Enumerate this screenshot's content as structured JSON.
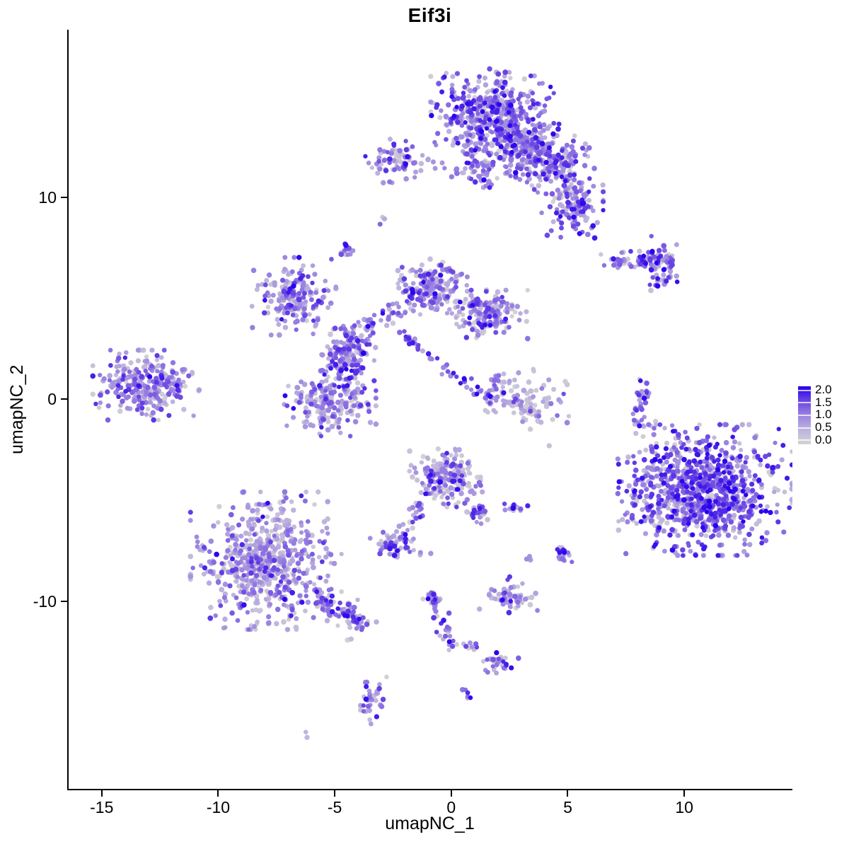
{
  "legend": {
    "labels": [
      "2.0",
      "1.5",
      "1.0",
      "0.5",
      "0.0"
    ],
    "values": [
      2.0,
      1.5,
      1.0,
      0.5,
      0.0
    ]
  },
  "chart_data": {
    "type": "scatter",
    "title": "Eif3i",
    "xlabel": "umapNC_1",
    "ylabel": "umapNC_2",
    "xlim": [
      -16.42,
      14.64
    ],
    "ylim": [
      -19.3,
      18.3
    ],
    "xticks": [
      -15,
      -10,
      -5,
      0,
      5,
      10
    ],
    "yticks": [
      10,
      0,
      -10
    ],
    "grid": false,
    "legend_position": "right",
    "point_color_meaning": "Eif3i expression level",
    "color_scale": {
      "min": 0,
      "max": 2,
      "stops": [
        [
          0.0,
          "#D3D3D3"
        ],
        [
          0.5,
          "#BEB3DE"
        ],
        [
          1.0,
          "#9A83E1"
        ],
        [
          1.5,
          "#6A45E3"
        ],
        [
          2.0,
          "#2800F0"
        ]
      ]
    },
    "clusters": [
      {
        "type": "gauss",
        "x": 1.76,
        "y": 14.2,
        "sx": 1.1,
        "sy": 0.9,
        "n": 420,
        "w": [
          0.14,
          0.22,
          0.3,
          0.22,
          0.12
        ]
      },
      {
        "type": "gauss",
        "x": 4.0,
        "y": 11.9,
        "sx": 0.8,
        "sy": 0.72,
        "n": 230,
        "w": [
          0.15,
          0.22,
          0.3,
          0.21,
          0.12
        ]
      },
      {
        "type": "gauss",
        "x": 5.2,
        "y": 9.7,
        "sx": 0.55,
        "sy": 0.72,
        "n": 140,
        "w": [
          0.18,
          0.24,
          0.28,
          0.2,
          0.1
        ]
      },
      {
        "type": "gauss",
        "x": 2.8,
        "y": 12.6,
        "sx": 0.65,
        "sy": 0.6,
        "n": 130,
        "w": [
          0.15,
          0.25,
          0.3,
          0.2,
          0.1
        ]
      },
      {
        "type": "line",
        "x1": 0.8,
        "y1": 12.9,
        "x2": 1.5,
        "y2": 10.7,
        "j": 0.3,
        "n": 80,
        "w": [
          0.15,
          0.25,
          0.3,
          0.2,
          0.1
        ]
      },
      {
        "type": "line",
        "x1": -0.97,
        "y1": 11.4,
        "x2": 0.7,
        "y2": 11.3,
        "j": 0.15,
        "n": 12,
        "w": [
          0.3,
          0.3,
          0.25,
          0.1,
          0.05
        ]
      },
      {
        "type": "gauss",
        "x": -2.2,
        "y": 11.8,
        "sx": 0.62,
        "sy": 0.45,
        "n": 78,
        "w": [
          0.25,
          0.25,
          0.27,
          0.16,
          0.07
        ]
      },
      {
        "type": "gauss",
        "x": -4.5,
        "y": 7.35,
        "sx": 0.14,
        "sy": 0.18,
        "n": 14,
        "w": [
          0.05,
          0.2,
          0.35,
          0.27,
          0.13
        ]
      },
      {
        "type": "gauss",
        "x": -2.95,
        "y": 8.8,
        "sx": 0.1,
        "sy": 0.1,
        "n": 3,
        "w": [
          0.2,
          0.3,
          0.3,
          0.15,
          0.05
        ]
      },
      {
        "type": "line",
        "x1": 6.7,
        "y1": 6.95,
        "x2": 9.2,
        "y2": 6.75,
        "j": 0.25,
        "n": 70,
        "w": [
          0.2,
          0.22,
          0.26,
          0.2,
          0.12
        ]
      },
      {
        "type": "gauss",
        "x": 9.05,
        "y": 6.9,
        "sx": 0.42,
        "sy": 0.5,
        "n": 45,
        "w": [
          0.15,
          0.2,
          0.28,
          0.24,
          0.13
        ]
      },
      {
        "type": "line",
        "x1": 8.55,
        "y1": 5.55,
        "x2": 9.35,
        "y2": 6.1,
        "j": 0.1,
        "n": 12,
        "w": [
          0.1,
          0.25,
          0.3,
          0.25,
          0.1
        ]
      },
      {
        "type": "gauss",
        "x": -6.75,
        "y": 5.1,
        "sx": 0.75,
        "sy": 0.8,
        "n": 195,
        "w": [
          0.18,
          0.26,
          0.3,
          0.18,
          0.08
        ]
      },
      {
        "type": "gauss",
        "x": -0.8,
        "y": 5.5,
        "sx": 0.62,
        "sy": 0.6,
        "n": 160,
        "w": [
          0.2,
          0.28,
          0.3,
          0.15,
          0.07
        ]
      },
      {
        "type": "gauss",
        "x": 1.55,
        "y": 4.2,
        "sx": 0.72,
        "sy": 0.5,
        "n": 170,
        "w": [
          0.28,
          0.25,
          0.25,
          0.15,
          0.07
        ]
      },
      {
        "type": "gauss",
        "x": -4.45,
        "y": 2.3,
        "sx": 0.5,
        "sy": 0.68,
        "n": 155,
        "w": [
          0.15,
          0.25,
          0.3,
          0.2,
          0.1
        ]
      },
      {
        "type": "line",
        "x1": -4.2,
        "y1": 3.1,
        "x2": -1.6,
        "y2": 5.0,
        "j": 0.3,
        "n": 55,
        "w": [
          0.2,
          0.27,
          0.3,
          0.15,
          0.08
        ]
      },
      {
        "type": "gauss",
        "x": -5.2,
        "y": -0.1,
        "sx": 0.82,
        "sy": 0.72,
        "n": 205,
        "w": [
          0.25,
          0.3,
          0.26,
          0.13,
          0.06
        ]
      },
      {
        "type": "line",
        "x1": -2.2,
        "y1": 3.3,
        "x2": 1.85,
        "y2": -0.2,
        "j": 0.12,
        "n": 52,
        "w": [
          0.08,
          0.18,
          0.3,
          0.27,
          0.17
        ]
      },
      {
        "type": "gauss",
        "x": 3.3,
        "y": 0.0,
        "sx": 0.8,
        "sy": 0.62,
        "n": 105,
        "w": [
          0.6,
          0.22,
          0.12,
          0.04,
          0.02
        ]
      },
      {
        "type": "line",
        "x1": 2.0,
        "y1": 1.2,
        "x2": 1.6,
        "y2": 0.2,
        "j": 0.15,
        "n": 18,
        "w": [
          0.2,
          0.3,
          0.3,
          0.15,
          0.05
        ]
      },
      {
        "type": "line",
        "x1": 8.35,
        "y1": 1.1,
        "x2": 7.95,
        "y2": -1.25,
        "j": 0.13,
        "n": 34,
        "w": [
          0.1,
          0.2,
          0.3,
          0.25,
          0.15
        ]
      },
      {
        "type": "gauss",
        "x": 10.9,
        "y": -4.5,
        "sx": 1.55,
        "sy": 1.35,
        "n": 860,
        "w": [
          0.12,
          0.17,
          0.27,
          0.27,
          0.17
        ]
      },
      {
        "type": "gauss",
        "x": 8.35,
        "y": -4.1,
        "sx": 0.5,
        "sy": 1.25,
        "n": 65,
        "w": [
          0.3,
          0.25,
          0.25,
          0.13,
          0.07
        ]
      },
      {
        "type": "gauss",
        "x": -0.3,
        "y": -3.9,
        "sx": 0.68,
        "sy": 0.6,
        "n": 195,
        "w": [
          0.3,
          0.25,
          0.25,
          0.13,
          0.07
        ]
      },
      {
        "type": "line",
        "x1": 0.7,
        "y1": -5.1,
        "x2": 1.35,
        "y2": -6.2,
        "j": 0.18,
        "n": 25,
        "w": [
          0.12,
          0.25,
          0.3,
          0.22,
          0.11
        ]
      },
      {
        "type": "line",
        "x1": -1.3,
        "y1": -5.3,
        "x2": -2.3,
        "y2": -6.9,
        "j": 0.16,
        "n": 22,
        "w": [
          0.25,
          0.3,
          0.25,
          0.13,
          0.07
        ]
      },
      {
        "type": "gauss",
        "x": -2.4,
        "y": -7.25,
        "sx": 0.45,
        "sy": 0.32,
        "n": 58,
        "w": [
          0.28,
          0.27,
          0.25,
          0.13,
          0.07
        ]
      },
      {
        "type": "gauss",
        "x": 2.8,
        "y": -5.4,
        "sx": 0.25,
        "sy": 0.12,
        "n": 12,
        "w": [
          0.08,
          0.2,
          0.32,
          0.25,
          0.15
        ]
      },
      {
        "type": "gauss",
        "x": 4.8,
        "y": -7.7,
        "sx": 0.2,
        "sy": 0.25,
        "n": 18,
        "w": [
          0.15,
          0.25,
          0.3,
          0.2,
          0.1
        ]
      },
      {
        "type": "gauss",
        "x": 3.4,
        "y": -7.95,
        "sx": 0.12,
        "sy": 0.1,
        "n": 4,
        "w": [
          0.3,
          0.3,
          0.25,
          0.1,
          0.05
        ]
      },
      {
        "type": "gauss",
        "x": -7.95,
        "y": -8.0,
        "sx": 1.35,
        "sy": 1.42,
        "n": 640,
        "w": [
          0.28,
          0.3,
          0.26,
          0.12,
          0.04
        ]
      },
      {
        "type": "line",
        "x1": -6.0,
        "y1": -9.9,
        "x2": -3.7,
        "y2": -11.05,
        "j": 0.32,
        "n": 95,
        "w": [
          0.2,
          0.26,
          0.3,
          0.17,
          0.07
        ]
      },
      {
        "type": "line",
        "x1": -0.9,
        "y1": -9.45,
        "x2": 0.1,
        "y2": -12.45,
        "j": 0.16,
        "n": 46,
        "w": [
          0.15,
          0.22,
          0.3,
          0.22,
          0.11
        ]
      },
      {
        "type": "gauss",
        "x": 0.75,
        "y": -12.2,
        "sx": 0.22,
        "sy": 0.13,
        "n": 8,
        "w": [
          0.3,
          0.25,
          0.25,
          0.15,
          0.05
        ]
      },
      {
        "type": "gauss",
        "x": 2.45,
        "y": -9.85,
        "sx": 0.52,
        "sy": 0.3,
        "n": 56,
        "w": [
          0.18,
          0.3,
          0.3,
          0.15,
          0.07
        ]
      },
      {
        "type": "gauss",
        "x": 2.15,
        "y": -13.1,
        "sx": 0.36,
        "sy": 0.24,
        "n": 30,
        "w": [
          0.12,
          0.22,
          0.3,
          0.24,
          0.12
        ]
      },
      {
        "type": "line",
        "x1": 0.5,
        "y1": -14.3,
        "x2": 0.78,
        "y2": -14.85,
        "j": 0.07,
        "n": 6,
        "w": [
          0.1,
          0.25,
          0.35,
          0.2,
          0.1
        ]
      },
      {
        "type": "gauss",
        "x": -3.4,
        "y": -15.05,
        "sx": 0.26,
        "sy": 0.55,
        "n": 32,
        "w": [
          0.2,
          0.25,
          0.3,
          0.17,
          0.08
        ]
      },
      {
        "type": "gauss",
        "x": -6.06,
        "y": -16.65,
        "sx": 0.1,
        "sy": 0.08,
        "n": 2,
        "w": [
          0.35,
          0.3,
          0.25,
          0.07,
          0.03
        ]
      },
      {
        "type": "gauss",
        "x": -13.1,
        "y": 0.7,
        "sx": 0.95,
        "sy": 0.72,
        "n": 285,
        "w": [
          0.22,
          0.27,
          0.28,
          0.16,
          0.07
        ]
      },
      {
        "type": "gauss",
        "x": 4.15,
        "y": -2.3,
        "sx": 0.05,
        "sy": 0.05,
        "n": 1,
        "w": [
          1,
          0,
          0,
          0,
          0
        ]
      },
      {
        "type": "gauss",
        "x": -0.88,
        "y": -7.6,
        "sx": 0.05,
        "sy": 0.05,
        "n": 1,
        "w": [
          0,
          0,
          1,
          0,
          0
        ]
      },
      {
        "type": "gauss",
        "x": 2.5,
        "y": -8.8,
        "sx": 0.05,
        "sy": 0.05,
        "n": 1,
        "w": [
          0,
          0,
          0,
          1,
          0
        ]
      },
      {
        "type": "gauss",
        "x": 2.42,
        "y": -8.97,
        "sx": 0.05,
        "sy": 0.05,
        "n": 1,
        "w": [
          0,
          0,
          0,
          1,
          0
        ]
      },
      {
        "type": "gauss",
        "x": -4.32,
        "y": -11.9,
        "sx": 0.12,
        "sy": 0.08,
        "n": 2,
        "w": [
          0.5,
          0.25,
          0.25,
          0,
          0
        ]
      }
    ]
  }
}
